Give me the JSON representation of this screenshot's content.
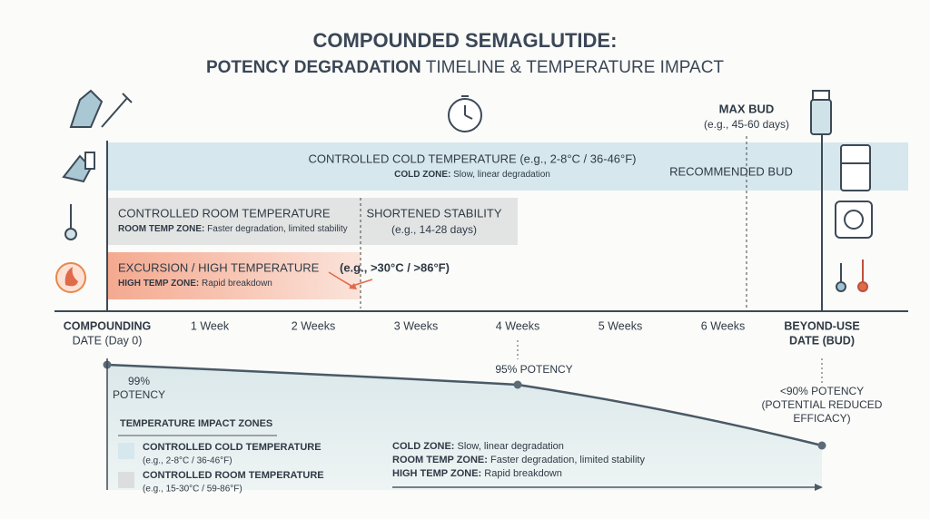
{
  "title": {
    "line1": "COMPOUNDED SEMAGLUTIDE:",
    "line2_bold": "POTENCY DEGRADATION",
    "line2_rest": " TIMELINE & TEMPERATURE IMPACT"
  },
  "max_bud": {
    "label": "MAX BUD",
    "note": "(e.g., 45-60 days)"
  },
  "zones": {
    "cold": {
      "title": "CONTROLLED COLD TEMPERATURE (e.g., 2-8°C / 36-46°F)",
      "label": "COLD ZONE:",
      "desc": " Slow, linear degradation",
      "recommended": "RECOMMENDED BUD"
    },
    "room": {
      "title": "CONTROLLED ROOM TEMPERATURE",
      "label": "ROOM TEMP ZONE:",
      "desc": " Faster degradation, limited stability",
      "shortened": "SHORTENED STABILITY",
      "shortened_note": "(e.g., 14-28 days)"
    },
    "high": {
      "title": "EXCURSION / HIGH TEMPERATURE",
      "note": "(e.g., >30°C / >86°F)",
      "label": "HIGH TEMP ZONE:",
      "desc": " Rapid breakdown"
    }
  },
  "timeline": {
    "start": [
      "COMPOUNDING",
      "DATE (Day 0)"
    ],
    "weeks": [
      "1 Week",
      "2 Weeks",
      "3 Weeks",
      "4 Weeks",
      "5 Weeks",
      "6 Weeks"
    ],
    "end": [
      "BEYOND-USE",
      "DATE (BUD)"
    ]
  },
  "potency": {
    "start": [
      "99%",
      "POTENCY"
    ],
    "mid": "95% POTENCY",
    "end": [
      "<90% POTENCY",
      "(POTENTIAL REDUCED",
      "EFFICACY)"
    ]
  },
  "legend": {
    "title": "TEMPERATURE IMPACT ZONES",
    "items": [
      {
        "name": "CONTROLLED COLD TEMPERATURE",
        "note": "(e.g., 2-8°C / 36-46°F)"
      },
      {
        "name": "CONTROLLED ROOM TEMPERATURE",
        "note": "(e.g., 15-30°C / 59-86°F)"
      }
    ]
  },
  "summary": [
    {
      "label": "COLD ZONE:",
      "desc": " Slow, linear degradation"
    },
    {
      "label": "ROOM TEMP ZONE:",
      "desc": " Faster degradation, limited stability"
    },
    {
      "label": "HIGH TEMP ZONE:",
      "desc": " Rapid breakdown"
    }
  ]
}
